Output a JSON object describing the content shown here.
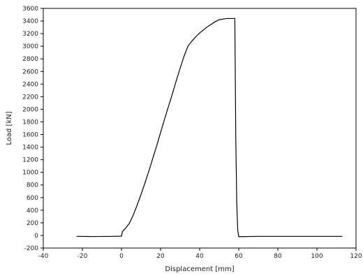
{
  "chart_data": {
    "type": "line",
    "title": "",
    "xlabel": "Displacement  [mm]",
    "ylabel": "Load  [kN]",
    "xlim": [
      -40,
      120
    ],
    "ylim": [
      -200,
      3600
    ],
    "xticks": [
      -40,
      -20,
      0,
      20,
      40,
      60,
      80,
      100,
      120
    ],
    "yticks": [
      -200,
      0,
      200,
      400,
      600,
      800,
      1000,
      1200,
      1400,
      1600,
      1800,
      2000,
      2200,
      2400,
      2600,
      2800,
      3000,
      3200,
      3400,
      3600
    ],
    "grid": false,
    "legend": "none",
    "colors": {
      "line": "#000000",
      "axis": "#000000",
      "background": "#ffffff"
    },
    "series": [
      {
        "x": [
          -23,
          -15,
          -5,
          0,
          0.5,
          2,
          4,
          6,
          8,
          10,
          12,
          14,
          16,
          18,
          20,
          22,
          24,
          26,
          28,
          30,
          32,
          34,
          36,
          38,
          40,
          42,
          44,
          46,
          48,
          50,
          52,
          54,
          56,
          58,
          58.5,
          59,
          59.5,
          60,
          70,
          80,
          90,
          100,
          113
        ],
        "y": [
          -15,
          -18,
          -15,
          -12,
          60,
          110,
          190,
          320,
          480,
          650,
          830,
          1020,
          1220,
          1420,
          1630,
          1840,
          2040,
          2240,
          2450,
          2650,
          2840,
          3000,
          3080,
          3150,
          3210,
          3260,
          3310,
          3350,
          3390,
          3420,
          3430,
          3440,
          3440,
          3440,
          1500,
          500,
          80,
          -20,
          -15,
          -15,
          -15,
          -15,
          -15
        ]
      }
    ]
  }
}
